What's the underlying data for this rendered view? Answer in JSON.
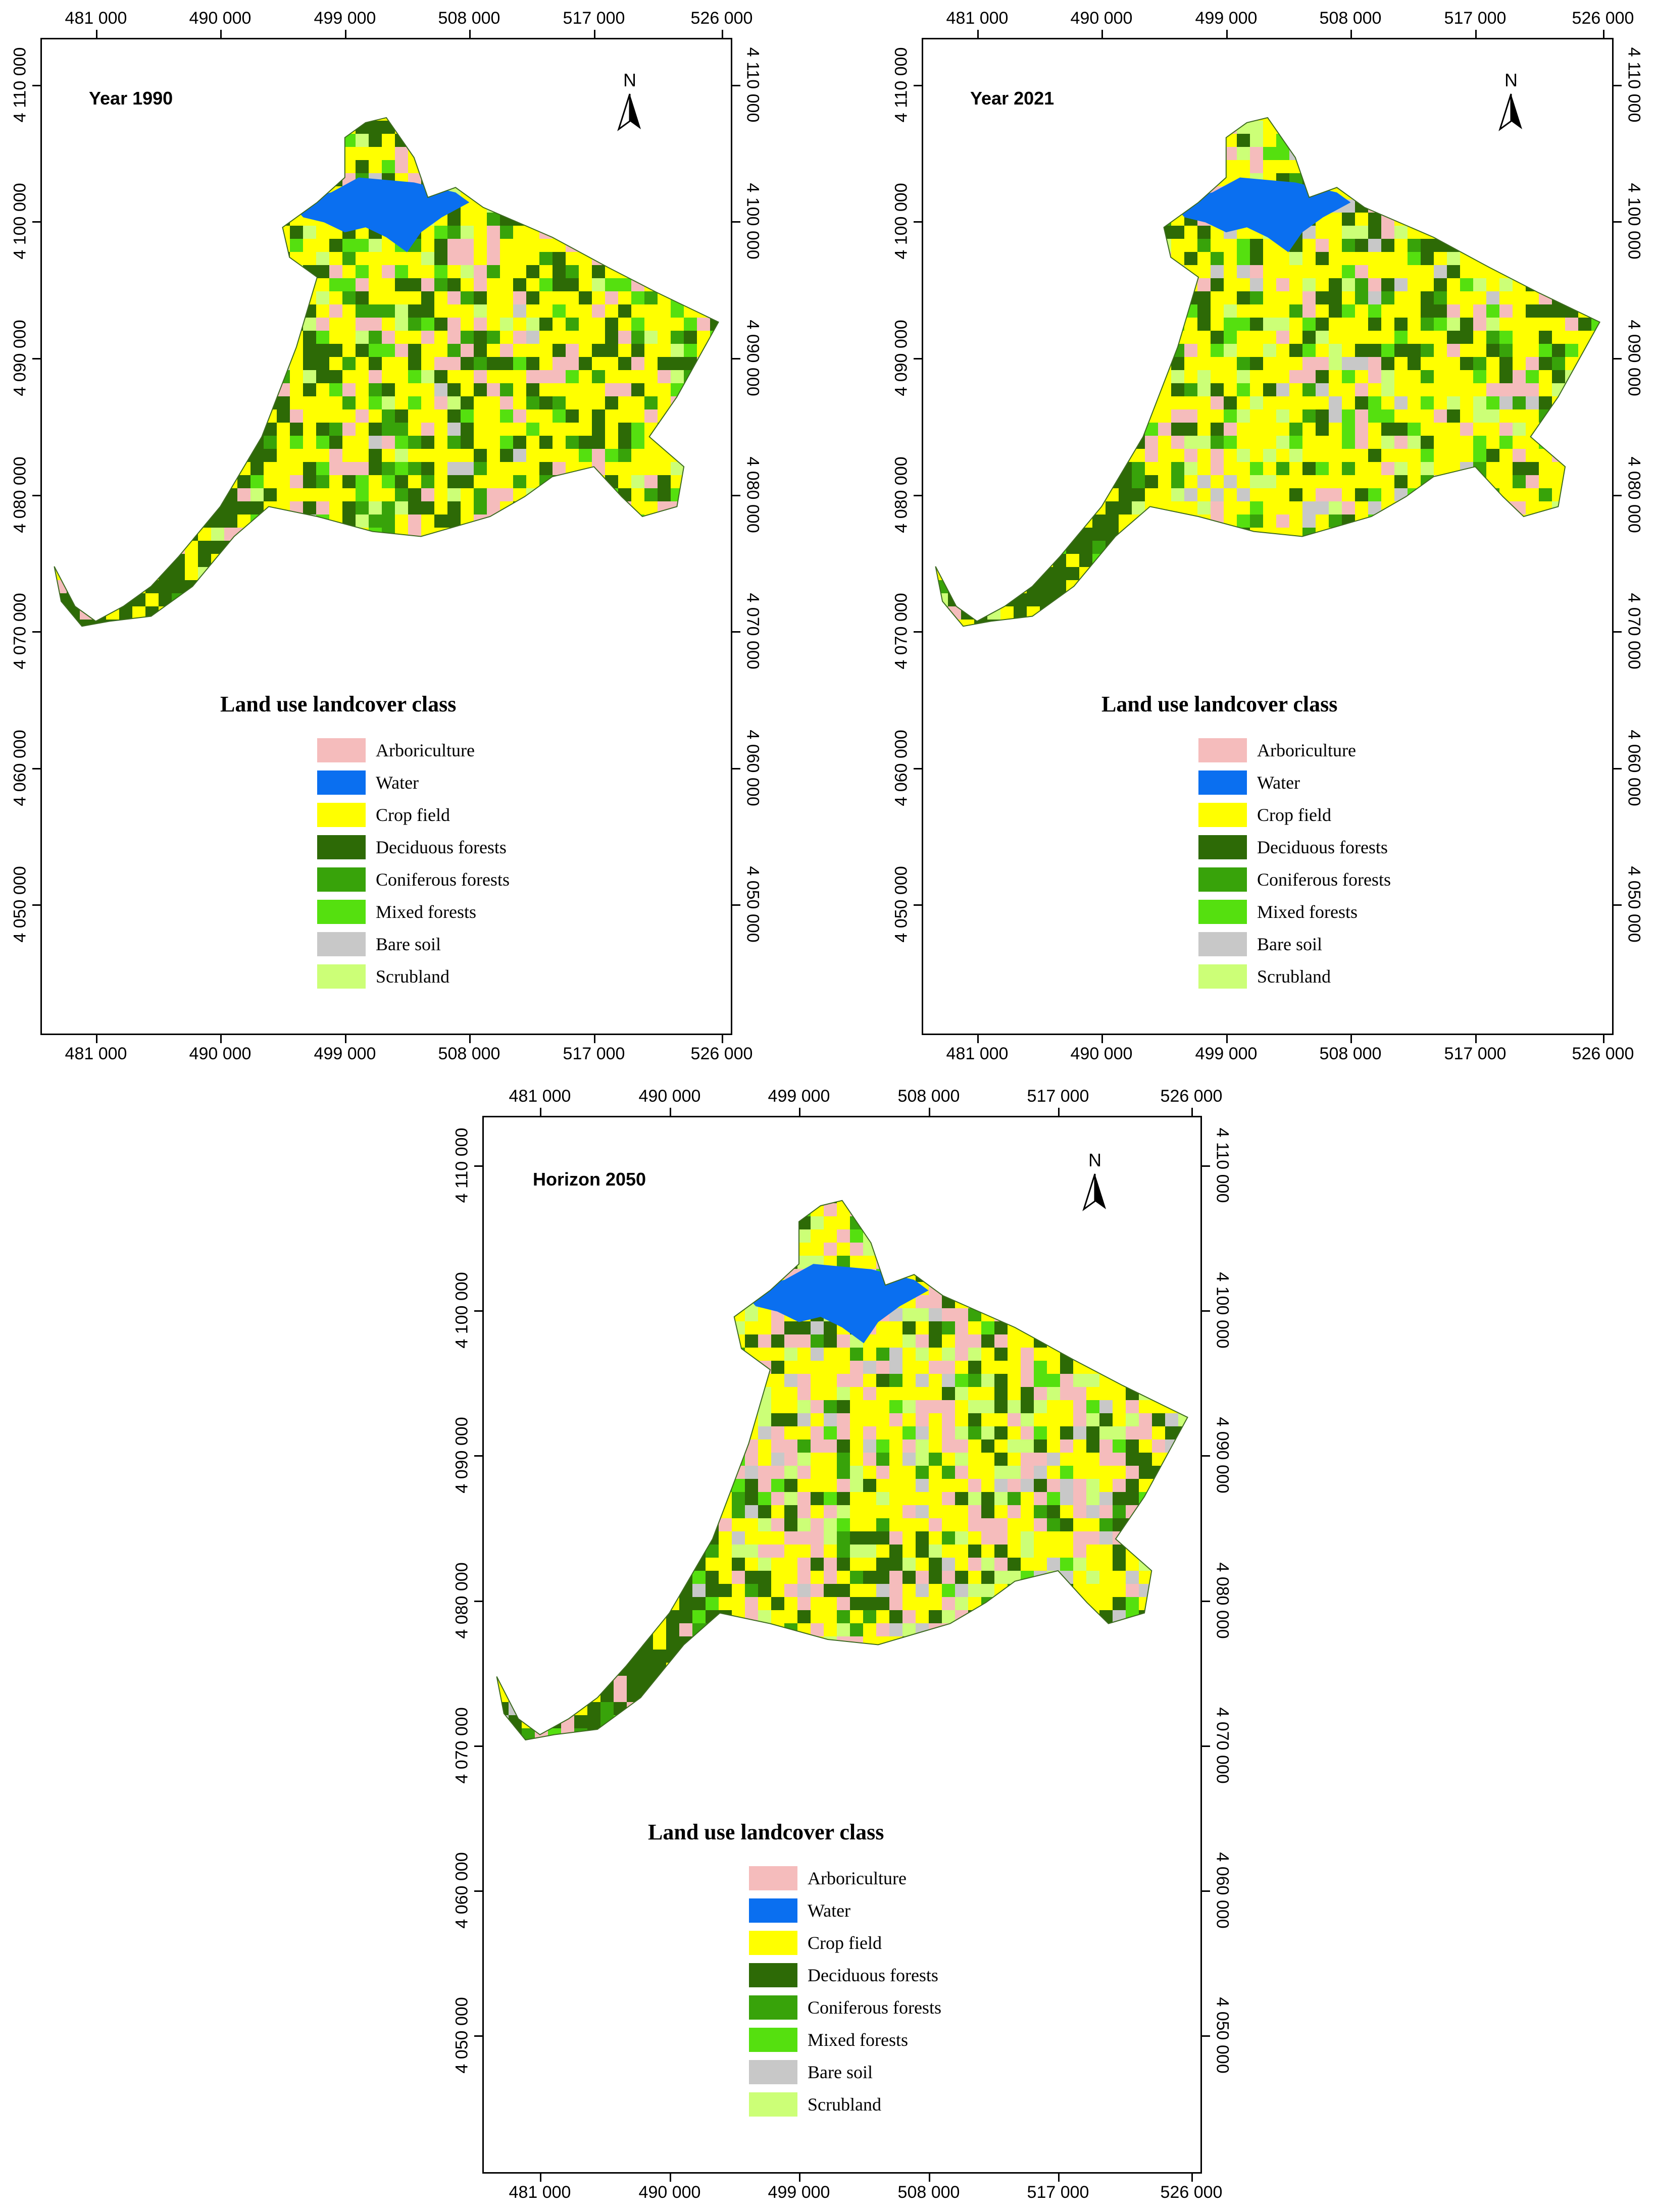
{
  "maps": [
    {
      "id": "p1990",
      "title": "Year 1990",
      "mix": [
        0.14,
        0.44,
        0.18,
        0.08,
        0.08,
        0.02,
        0.06
      ]
    },
    {
      "id": "p2021",
      "title": "Year 2021",
      "mix": [
        0.1,
        0.48,
        0.16,
        0.07,
        0.07,
        0.04,
        0.08
      ]
    },
    {
      "id": "p2050",
      "title": "Horizon 2050",
      "mix": [
        0.2,
        0.4,
        0.14,
        0.05,
        0.04,
        0.06,
        0.11
      ]
    }
  ],
  "x_ticks": [
    "481 000",
    "490 000",
    "499 000",
    "508 000",
    "517 000",
    "526 000"
  ],
  "y_ticks": [
    "4 110 000",
    "4 100 000",
    "4 090 000",
    "4 080 000",
    "4 070 000",
    "4 060 000",
    "4 050 000"
  ],
  "north_label": "N",
  "legend": {
    "title": "Land use landcover class",
    "items": [
      {
        "label": "Arboriculture",
        "color": "#f5bcbc"
      },
      {
        "label": "Water",
        "color": "#0a6ff0"
      },
      {
        "label": "Crop field",
        "color": "#ffff00"
      },
      {
        "label": "Deciduous forests",
        "color": "#2d6a06"
      },
      {
        "label": "Coniferous forests",
        "color": "#38a30a"
      },
      {
        "label": "Mixed forests",
        "color": "#55e00f"
      },
      {
        "label": "Bare soil",
        "color": "#c8c8c8"
      },
      {
        "label": "Scrubland",
        "color": "#ccff77"
      }
    ]
  }
}
